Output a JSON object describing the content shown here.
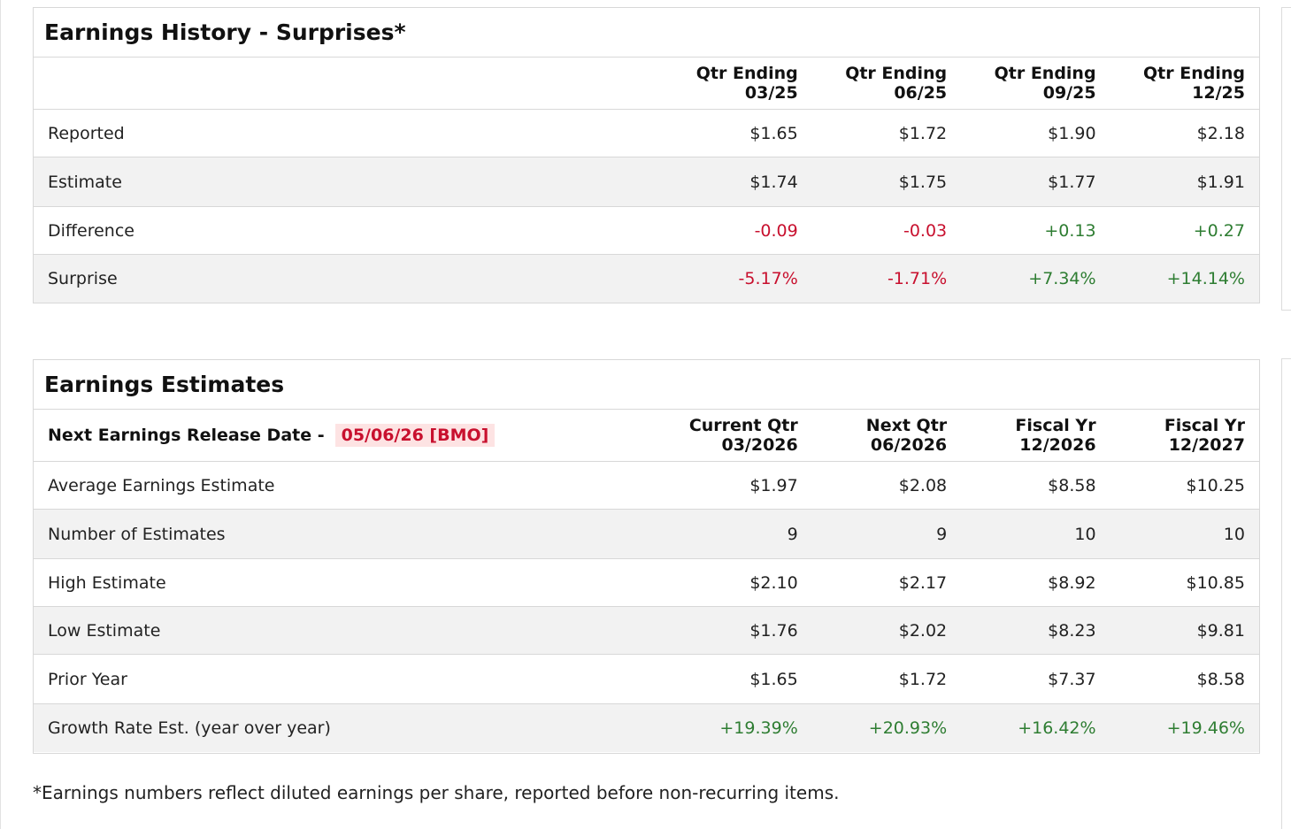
{
  "history": {
    "title": "Earnings History - Surprises*",
    "columns": [
      {
        "line1": "Qtr Ending",
        "line2": "03/25"
      },
      {
        "line1": "Qtr Ending",
        "line2": "06/25"
      },
      {
        "line1": "Qtr Ending",
        "line2": "09/25"
      },
      {
        "line1": "Qtr Ending",
        "line2": "12/25"
      }
    ],
    "rows": [
      {
        "label": "Reported",
        "values": [
          "$1.65",
          "$1.72",
          "$1.90",
          "$2.18"
        ]
      },
      {
        "label": "Estimate",
        "values": [
          "$1.74",
          "$1.75",
          "$1.77",
          "$1.91"
        ]
      },
      {
        "label": "Difference",
        "values": [
          "-0.09",
          "-0.03",
          "+0.13",
          "+0.27"
        ]
      },
      {
        "label": "Surprise",
        "values": [
          "-5.17%",
          "-1.71%",
          "+7.34%",
          "+14.14%"
        ]
      }
    ]
  },
  "estimates": {
    "title": "Earnings Estimates",
    "release_label": "Next Earnings Release Date -",
    "release_date": "05/06/26 [BMO]",
    "columns": [
      {
        "line1": "Current Qtr",
        "line2": "03/2026"
      },
      {
        "line1": "Next Qtr",
        "line2": "06/2026"
      },
      {
        "line1": "Fiscal Yr",
        "line2": "12/2026"
      },
      {
        "line1": "Fiscal Yr",
        "line2": "12/2027"
      }
    ],
    "rows": [
      {
        "label": "Average Earnings Estimate",
        "values": [
          "$1.97",
          "$2.08",
          "$8.58",
          "$10.25"
        ]
      },
      {
        "label": "Number of Estimates",
        "values": [
          "9",
          "9",
          "10",
          "10"
        ]
      },
      {
        "label": "High Estimate",
        "values": [
          "$2.10",
          "$2.17",
          "$8.92",
          "$10.85"
        ]
      },
      {
        "label": "Low Estimate",
        "values": [
          "$1.76",
          "$2.02",
          "$8.23",
          "$9.81"
        ]
      },
      {
        "label": "Prior Year",
        "values": [
          "$1.65",
          "$1.72",
          "$7.37",
          "$8.58"
        ]
      },
      {
        "label": "Growth Rate Est. (year over year)",
        "values": [
          "+19.39%",
          "+20.93%",
          "+16.42%",
          "+19.46%"
        ]
      }
    ]
  },
  "footnote": "*Earnings numbers reflect diluted earnings per share, reported before non-recurring items.",
  "colors": {
    "negative": "#c8102e",
    "positive": "#2e7d32",
    "badge_bg": "#fde3e3",
    "alt_row": "#f2f2f2",
    "border": "#d8d8d8"
  }
}
